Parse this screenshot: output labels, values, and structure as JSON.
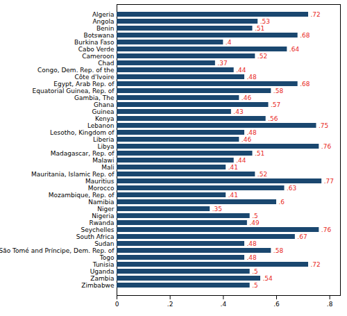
{
  "chart_data": {
    "type": "bar",
    "orientation": "horizontal",
    "data_labels": true,
    "color": "#1a476f",
    "label_color": "#e8271c",
    "categories": [
      "Algeria",
      "Angola",
      "Benin",
      "Botswana",
      "Burkina Faso",
      "Cabo Verde",
      "Cameroon",
      "Chad",
      "Congo, Dem. Rep. of the",
      "Côte d'Ivoire",
      "Egypt, Arab Rep. of",
      "Equatorial Guinea, Rep. of",
      "Gambia, The",
      "Ghana",
      "Guinea",
      "Kenya",
      "Lebanon",
      "Lesotho, Kingdom of",
      "Liberia",
      "Libya",
      "Madagascar, Rep. of",
      "Malawi",
      "Mali",
      "Mauritania, Islamic Rep. of",
      "Mauritius",
      "Morocco",
      "Mozambique, Rep. of",
      "Namibia",
      "Niger",
      "Nigeria",
      "Rwanda",
      "Seychelles",
      "South Africa",
      "Sudan",
      "São Tomé and Príncipe, Dem. Rep. of",
      "Togo",
      "Tunisia",
      "Uganda",
      "Zambia",
      "Zimbabwe"
    ],
    "values": [
      0.72,
      0.53,
      0.51,
      0.68,
      0.4,
      0.64,
      0.52,
      0.37,
      0.44,
      0.48,
      0.68,
      0.58,
      0.46,
      0.57,
      0.43,
      0.56,
      0.75,
      0.48,
      0.46,
      0.76,
      0.51,
      0.44,
      0.41,
      0.52,
      0.77,
      0.63,
      0.41,
      0.6,
      0.35,
      0.5,
      0.49,
      0.76,
      0.67,
      0.48,
      0.58,
      0.48,
      0.72,
      0.5,
      0.54,
      0.5
    ],
    "value_labels": [
      ".72",
      ".53",
      ".51",
      ".68",
      ".4",
      ".64",
      ".52",
      ".37",
      ".44",
      ".48",
      ".68",
      ".58",
      ".46",
      ".57",
      ".43",
      ".56",
      ".75",
      ".48",
      ".46",
      ".76",
      ".51",
      ".44",
      ".41",
      ".52",
      ".77",
      ".63",
      ".41",
      ".6",
      ".35",
      ".5",
      ".49",
      ".76",
      ".67",
      ".48",
      ".58",
      ".48",
      ".72",
      ".5",
      ".54",
      ".5"
    ],
    "xlim": [
      0,
      0.84
    ],
    "xticks": [
      0,
      {
        "value": 0.2,
        "label": ".2"
      },
      {
        "value": 0.4,
        "label": ".4"
      },
      {
        "value": 0.6,
        "label": ".6"
      },
      {
        "value": 0.8,
        "label": ".8"
      }
    ],
    "grid": false
  }
}
